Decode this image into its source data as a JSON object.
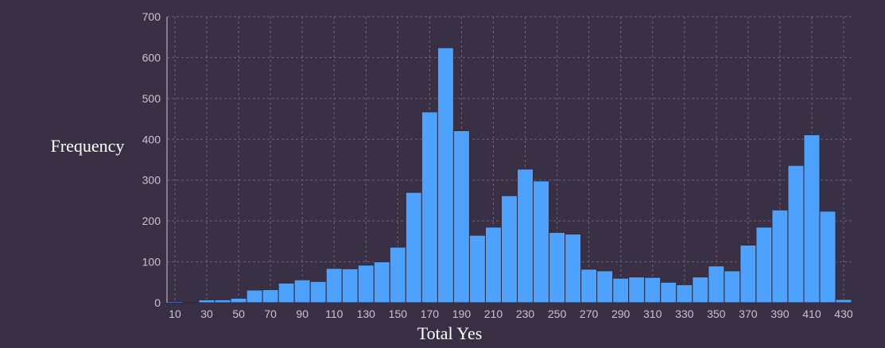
{
  "colors": {
    "background": "#3a3045",
    "bar": "#4da2ff",
    "bar_edge": "#2f2a3a",
    "grid": "#6a6275",
    "tick_text": "#c8c3cf",
    "axis_title": "#ffffff"
  },
  "chart_data": {
    "type": "bar",
    "title": "",
    "xlabel": "Total Yes",
    "ylabel": "Frequency",
    "ylim": [
      0,
      700
    ],
    "xlim": [
      5,
      435
    ],
    "bin_width": 10,
    "grid": true,
    "x_ticks": [
      10,
      30,
      50,
      70,
      90,
      110,
      130,
      150,
      170,
      190,
      210,
      230,
      250,
      270,
      290,
      310,
      330,
      350,
      370,
      390,
      410,
      430
    ],
    "y_ticks": [
      0,
      100,
      200,
      300,
      400,
      500,
      600,
      700
    ],
    "categories": [
      10,
      20,
      30,
      40,
      50,
      60,
      70,
      80,
      90,
      100,
      110,
      120,
      130,
      140,
      150,
      160,
      170,
      180,
      190,
      200,
      210,
      220,
      230,
      240,
      250,
      260,
      270,
      280,
      290,
      300,
      310,
      320,
      330,
      340,
      350,
      360,
      370,
      380,
      390,
      400,
      410,
      420,
      430
    ],
    "values": [
      3,
      1,
      7,
      7,
      11,
      31,
      32,
      48,
      56,
      52,
      84,
      83,
      92,
      100,
      136,
      270,
      467,
      624,
      421,
      165,
      185,
      262,
      327,
      298,
      172,
      168,
      82,
      78,
      60,
      63,
      62,
      50,
      44,
      63,
      90,
      78,
      141,
      185,
      227,
      336,
      411,
      224,
      8
    ]
  }
}
